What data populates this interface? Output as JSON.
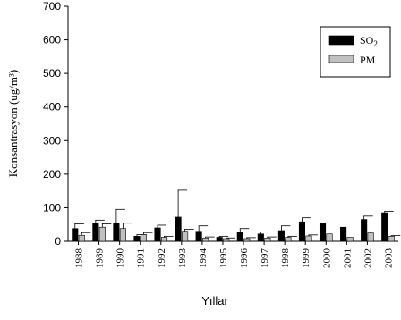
{
  "chart_data": {
    "type": "bar",
    "xlabel": "Yıllar",
    "ylabel": "Konsantrasyon (ug/m³)",
    "ylim": [
      0,
      700
    ],
    "yticks": [
      0,
      100,
      200,
      300,
      400,
      500,
      600,
      700
    ],
    "categories": [
      "1988",
      "1989",
      "1990",
      "1991",
      "1992",
      "1993",
      "1994",
      "1995",
      "1996",
      "1997",
      "1998",
      "1999",
      "2000",
      "2001",
      "2002",
      "2003"
    ],
    "series": [
      {
        "name": "SO2",
        "color": "#000000",
        "values": [
          38,
          55,
          55,
          15,
          40,
          72,
          30,
          12,
          28,
          22,
          32,
          58,
          53,
          42,
          65,
          85
        ],
        "errors": [
          14,
          8,
          40,
          5,
          8,
          80,
          16,
          3,
          10,
          6,
          14,
          12,
          0,
          0,
          10,
          4
        ]
      },
      {
        "name": "PM",
        "color": "#c0c0c0",
        "values": [
          18,
          42,
          38,
          20,
          12,
          30,
          10,
          8,
          8,
          10,
          12,
          16,
          22,
          12,
          25,
          15
        ],
        "errors": [
          8,
          10,
          16,
          6,
          3,
          6,
          3,
          2,
          3,
          3,
          3,
          3,
          0,
          0,
          3,
          2
        ]
      }
    ],
    "legend": {
      "position": "top-right",
      "entries": [
        {
          "label_main": "SO",
          "label_sub": "2"
        },
        {
          "label_main": "PM",
          "label_sub": ""
        }
      ]
    },
    "grid": false
  }
}
